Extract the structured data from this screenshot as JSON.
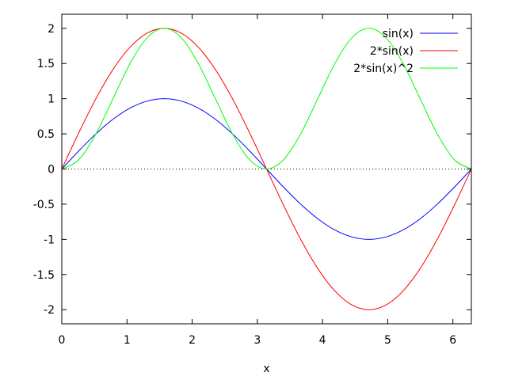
{
  "chart_data": {
    "type": "line",
    "title": "",
    "xlabel": "x",
    "ylabel": "",
    "xlim": [
      0,
      6.2832
    ],
    "ylim": [
      -2.2,
      2.2
    ],
    "xticks": [
      0,
      1,
      2,
      3,
      4,
      5,
      6
    ],
    "yticks": [
      -2,
      -1.5,
      -1,
      -0.5,
      0,
      0.5,
      1,
      1.5,
      2
    ],
    "grid": false,
    "zero_line": "dotted",
    "legend_position": "top-right",
    "x": [
      0,
      0.2618,
      0.5236,
      0.7854,
      1.0472,
      1.309,
      1.5708,
      1.8326,
      2.0944,
      2.3562,
      2.618,
      2.8798,
      3.1416,
      3.4034,
      3.6652,
      3.927,
      4.1888,
      4.4506,
      4.7124,
      4.9742,
      5.236,
      5.4978,
      5.7596,
      6.0214,
      6.2832
    ],
    "series": [
      {
        "name": "sin(x)",
        "color": "#0000ff",
        "values": [
          0,
          0.2588,
          0.5,
          0.7071,
          0.866,
          0.9659,
          1,
          0.9659,
          0.866,
          0.7071,
          0.5,
          0.2588,
          0,
          -0.2588,
          -0.5,
          -0.7071,
          -0.866,
          -0.9659,
          -1,
          -0.9659,
          -0.866,
          -0.7071,
          -0.5,
          -0.2588,
          0
        ]
      },
      {
        "name": "2*sin(x)",
        "color": "#ff0000",
        "values": [
          0,
          0.5176,
          1,
          1.4142,
          1.7321,
          1.9319,
          2,
          1.9319,
          1.7321,
          1.4142,
          1,
          0.5176,
          0,
          -0.5176,
          -1,
          -1.4142,
          -1.7321,
          -1.9319,
          -2,
          -1.9319,
          -1.7321,
          -1.4142,
          -1,
          -0.5176,
          0
        ]
      },
      {
        "name": "2*sin(x)^2",
        "color": "#00ff00",
        "values": [
          0,
          0.134,
          0.5,
          1,
          1.5,
          1.866,
          2,
          1.866,
          1.5,
          1,
          0.5,
          0.134,
          0,
          0.134,
          0.5,
          1,
          1.5,
          1.866,
          2,
          1.866,
          1.5,
          1,
          0.5,
          0.134,
          0
        ]
      }
    ]
  }
}
